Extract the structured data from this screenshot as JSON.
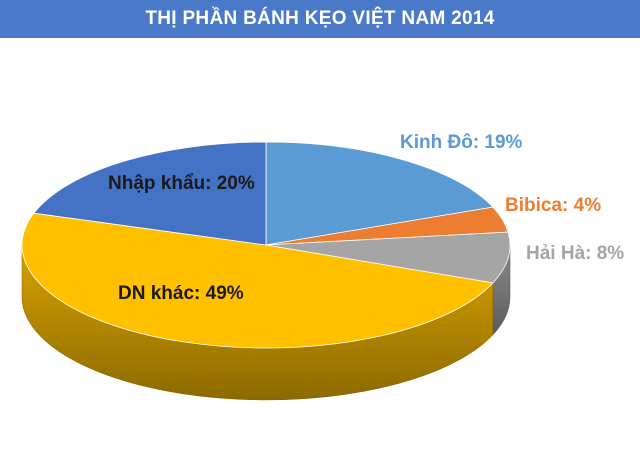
{
  "title": "THỊ PHẦN BÁNH KẸO VIỆT NAM 2014",
  "colors": {
    "header_bg": "#4a79c9",
    "header_text": "#ffffff"
  },
  "chart_data": {
    "type": "pie",
    "title": "THỊ PHẦN BÁNH KẸO VIỆT NAM 2014",
    "slices": [
      {
        "label": "Kinh Đô: 19%",
        "name": "Kinh Đô",
        "value": 19,
        "color": "#5b9bd5",
        "label_color": "#5b9bd5"
      },
      {
        "label": "Bibica: 4%",
        "name": "Bibica",
        "value": 4,
        "color": "#ed7d31",
        "label_color": "#ed7d31"
      },
      {
        "label": "Hải Hà: 8%",
        "name": "Hải Hà",
        "value": 8,
        "color": "#a5a5a5",
        "label_color": "#a5a5a5"
      },
      {
        "label": "DN khác: 49%",
        "name": "DN khác",
        "value": 49,
        "color": "#ffc000",
        "label_color": "#1a1a1a"
      },
      {
        "label": "Nhập khẩu: 20%",
        "name": "Nhập khẩu",
        "value": 20,
        "color": "#4472c4",
        "label_color": "#1a1a1a"
      }
    ]
  }
}
